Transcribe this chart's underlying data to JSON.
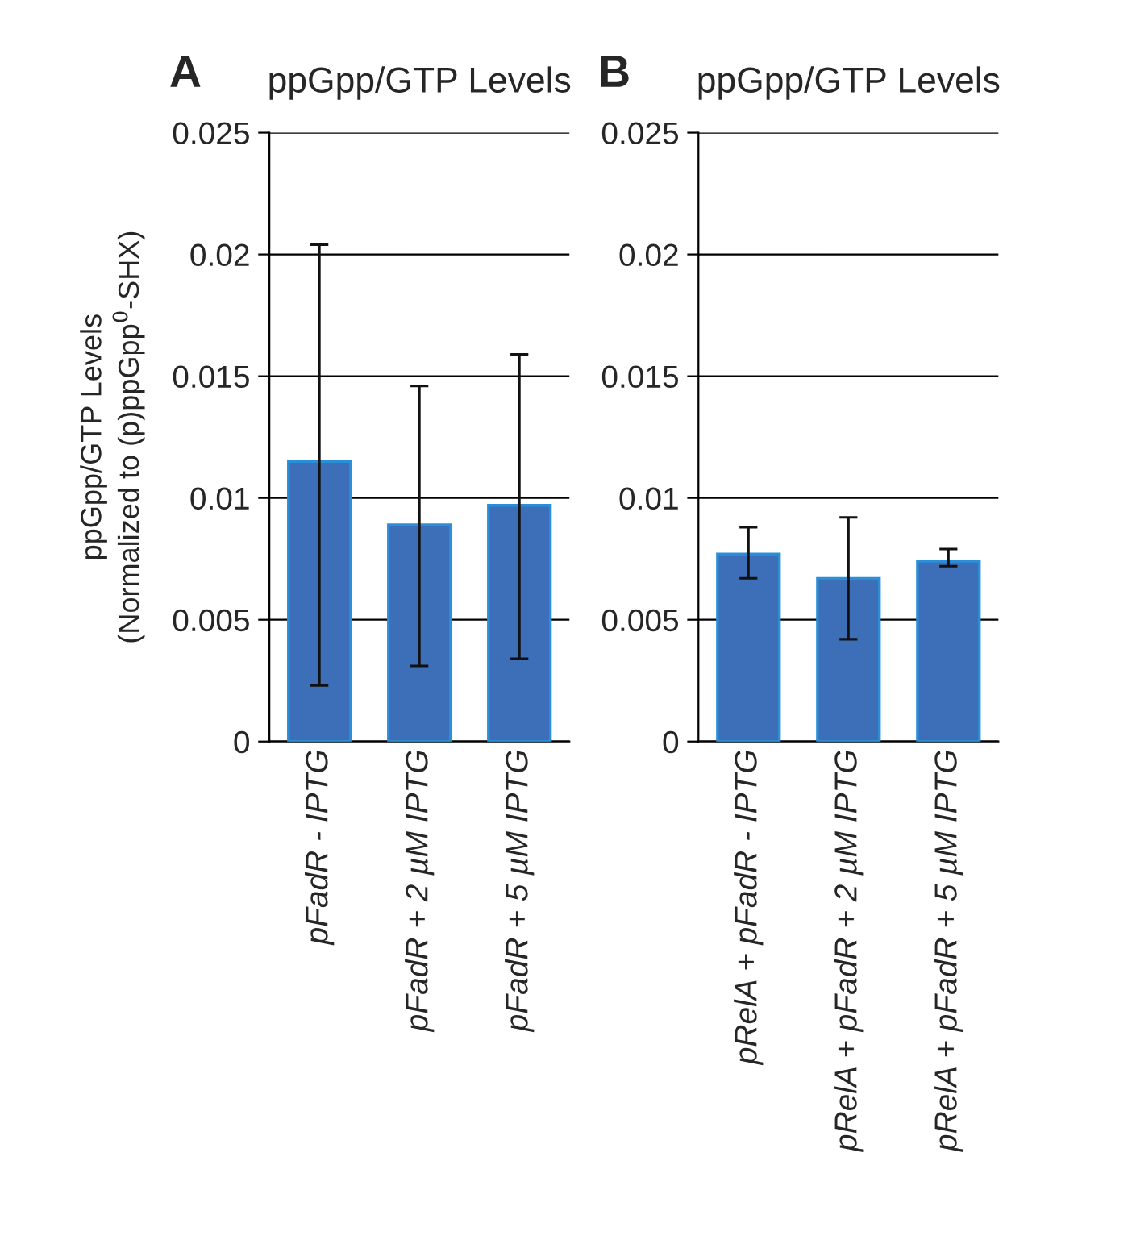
{
  "chart_data": [
    {
      "type": "bar",
      "title": "ppGpp/GTP Levels",
      "ylabel": "ppGpp/GTP Levels\n(Normalized to (p)ppGpp$^{0}$-SHX)",
      "annotations": [
        "A"
      ],
      "categories": [
        "pFadR - IPTG",
        "pFadR + 2 µM IPTG",
        "pFadR + 5 µM IPTG"
      ],
      "series": [
        {
          "color": "#3d6fb8",
          "values": [
            0.0115,
            0.0089,
            0.0097
          ],
          "errors": [
            [
              0.0023,
              0.0204
            ],
            [
              0.0031,
              0.0146
            ],
            [
              0.0034,
              0.0159
            ]
          ]
        }
      ],
      "ylim": [
        0,
        0.025
      ],
      "yticks": [
        0,
        0.005,
        0.01,
        0.015,
        0.02,
        0.025
      ],
      "grid": "y",
      "legend": false
    },
    {
      "type": "bar",
      "title": "ppGpp/GTP Levels",
      "annotations": [
        "B"
      ],
      "categories": [
        "pRelA + pFadR - IPTG",
        "pRelA + pFadR + 2 µM IPTG",
        "pRelA + pFadR + 5 µM IPTG"
      ],
      "series": [
        {
          "color": "#3d6fb8",
          "values": [
            0.0077,
            0.0067,
            0.0074
          ],
          "errors": [
            [
              0.0067,
              0.0088
            ],
            [
              0.0042,
              0.0092
            ],
            [
              0.0072,
              0.0079
            ]
          ]
        }
      ],
      "ylim": [
        0,
        0.025
      ],
      "yticks": [
        0,
        0.005,
        0.01,
        0.015,
        0.02,
        0.025
      ],
      "grid": "y",
      "legend": false
    }
  ]
}
